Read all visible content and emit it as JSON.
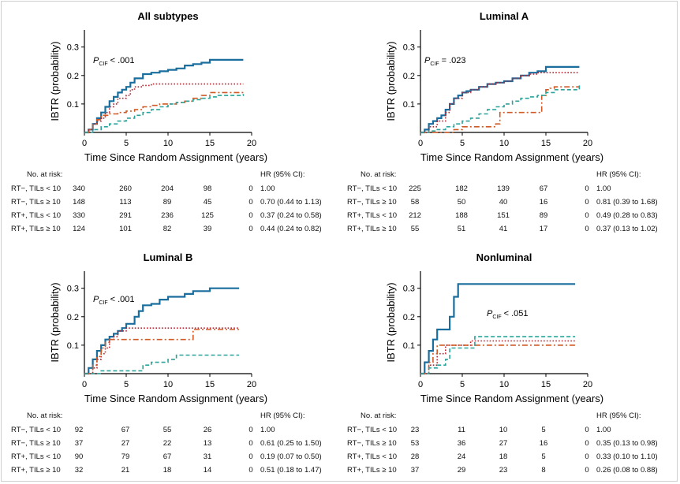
{
  "shared": {
    "ylabel": "IBTR (probability)",
    "xlabel": "Time Since Random Assignment (years)",
    "risk_header": "No. at risk:",
    "hr_header": "HR (95% CI):",
    "row_labels": [
      "RT−, TILs < 10",
      "RT−, TILs ≥ 10",
      "RT+, TILs < 10",
      "RT+, TILs ≥ 10"
    ],
    "x_ticks": [
      "0",
      "5",
      "10",
      "15",
      "20"
    ],
    "y_ticks": [
      "0.1",
      "0.2",
      "0.3"
    ],
    "series_colors": [
      "#1a6e9e",
      "#b8232f",
      "#cf5a26",
      "#2aa39a"
    ],
    "series_styles": [
      "solid",
      "dotted",
      "dashdot",
      "dashed"
    ]
  },
  "chart_data": [
    {
      "type": "line",
      "title": "All subtypes",
      "p_label": "P",
      "p_sub": "CIF",
      "p_value": "< .001",
      "xlim": [
        0,
        20
      ],
      "ylim": [
        0,
        0.36
      ],
      "series": [
        {
          "x": [
            0,
            0.5,
            1,
            1.5,
            2,
            2.5,
            3,
            3.5,
            4,
            4.5,
            5,
            5.5,
            6,
            7,
            8,
            9,
            10,
            11,
            12,
            13,
            14,
            15,
            16,
            19
          ],
          "y": [
            0,
            0.01,
            0.03,
            0.05,
            0.07,
            0.09,
            0.11,
            0.125,
            0.14,
            0.15,
            0.16,
            0.175,
            0.19,
            0.205,
            0.21,
            0.215,
            0.22,
            0.225,
            0.235,
            0.24,
            0.245,
            0.255,
            0.255,
            0.255
          ]
        },
        {
          "x": [
            0,
            0.5,
            1,
            1.5,
            2,
            2.5,
            3,
            3.5,
            4,
            5,
            5.5,
            6,
            7,
            8,
            19
          ],
          "y": [
            0,
            0.01,
            0.03,
            0.04,
            0.05,
            0.07,
            0.09,
            0.1,
            0.12,
            0.13,
            0.15,
            0.16,
            0.165,
            0.17,
            0.17
          ]
        },
        {
          "x": [
            0,
            0.5,
            1,
            1.5,
            2,
            3,
            4,
            5,
            6,
            7,
            8,
            9,
            10,
            11,
            12,
            13,
            14,
            15,
            16,
            19
          ],
          "y": [
            0,
            0.01,
            0.03,
            0.045,
            0.06,
            0.065,
            0.07,
            0.075,
            0.08,
            0.09,
            0.095,
            0.1,
            0.1,
            0.105,
            0.11,
            0.12,
            0.13,
            0.14,
            0.14,
            0.14
          ]
        },
        {
          "x": [
            0,
            1,
            2,
            3,
            4,
            5,
            6,
            7,
            8,
            9,
            10,
            11,
            12,
            13,
            14,
            15,
            16,
            19
          ],
          "y": [
            0,
            0.01,
            0.02,
            0.03,
            0.04,
            0.05,
            0.06,
            0.07,
            0.08,
            0.09,
            0.1,
            0.105,
            0.11,
            0.115,
            0.12,
            0.125,
            0.13,
            0.135
          ]
        }
      ],
      "risk_table": [
        [
          "340",
          "260",
          "204",
          "98",
          "0"
        ],
        [
          "148",
          "113",
          "89",
          "45",
          "0"
        ],
        [
          "330",
          "291",
          "236",
          "125",
          "0"
        ],
        [
          "124",
          "101",
          "82",
          "39",
          "0"
        ]
      ],
      "hr": [
        "1.00",
        "0.70 (0.44 to 1.13)",
        "0.37 (0.24 to 0.58)",
        "0.44 (0.24 to 0.82)"
      ]
    },
    {
      "type": "line",
      "title": "Luminal A",
      "p_label": "P",
      "p_sub": "CIF",
      "p_value": "= .023",
      "xlim": [
        0,
        20
      ],
      "ylim": [
        0,
        0.36
      ],
      "series": [
        {
          "x": [
            0,
            0.5,
            1,
            1.5,
            2,
            2.5,
            3,
            3.5,
            4,
            4.5,
            5,
            5.5,
            6,
            7,
            8,
            9,
            10,
            11,
            12,
            13,
            14,
            15,
            19
          ],
          "y": [
            0,
            0.01,
            0.03,
            0.04,
            0.05,
            0.06,
            0.08,
            0.1,
            0.12,
            0.13,
            0.14,
            0.145,
            0.15,
            0.16,
            0.17,
            0.175,
            0.18,
            0.19,
            0.2,
            0.21,
            0.215,
            0.23,
            0.23
          ]
        },
        {
          "x": [
            0,
            1,
            2,
            3,
            3.5,
            4,
            5,
            6,
            7,
            8,
            9,
            10,
            11,
            12,
            13,
            14,
            15,
            19
          ],
          "y": [
            0,
            0.02,
            0.04,
            0.07,
            0.1,
            0.12,
            0.14,
            0.15,
            0.16,
            0.17,
            0.175,
            0.18,
            0.19,
            0.2,
            0.205,
            0.21,
            0.21,
            0.21
          ]
        },
        {
          "x": [
            0,
            3,
            4,
            5,
            9,
            9.5,
            13,
            14,
            14.5,
            15,
            15.5,
            16,
            19
          ],
          "y": [
            0,
            0,
            0.01,
            0.02,
            0.03,
            0.07,
            0.07,
            0.07,
            0.13,
            0.15,
            0.155,
            0.16,
            0.16
          ]
        },
        {
          "x": [
            0,
            1,
            2,
            3,
            4,
            5,
            6,
            7,
            8,
            9,
            10,
            11,
            12,
            13,
            14,
            15,
            16,
            19
          ],
          "y": [
            0,
            0.005,
            0.01,
            0.02,
            0.03,
            0.04,
            0.05,
            0.065,
            0.08,
            0.09,
            0.1,
            0.11,
            0.12,
            0.125,
            0.13,
            0.14,
            0.15,
            0.165
          ]
        }
      ],
      "risk_table": [
        [
          "225",
          "182",
          "139",
          "67",
          "0"
        ],
        [
          "58",
          "50",
          "40",
          "16",
          "0"
        ],
        [
          "212",
          "188",
          "151",
          "89",
          "0"
        ],
        [
          "55",
          "51",
          "41",
          "17",
          "0"
        ]
      ],
      "hr": [
        "1.00",
        "0.81 (0.39 to 1.68)",
        "0.49 (0.28 to 0.83)",
        "0.37 (0.13 to 1.02)"
      ]
    },
    {
      "type": "line",
      "title": "Luminal B",
      "p_label": "P",
      "p_sub": "CIF",
      "p_value": "< .001",
      "xlim": [
        0,
        20
      ],
      "ylim": [
        0,
        0.36
      ],
      "series": [
        {
          "x": [
            0,
            0.5,
            1,
            1.5,
            2,
            2.5,
            3,
            3.5,
            4,
            4.5,
            5,
            6,
            6.5,
            7,
            8,
            9,
            10,
            12,
            13,
            15,
            18.5
          ],
          "y": [
            0,
            0.02,
            0.05,
            0.08,
            0.1,
            0.12,
            0.13,
            0.14,
            0.15,
            0.16,
            0.175,
            0.2,
            0.22,
            0.24,
            0.245,
            0.26,
            0.27,
            0.28,
            0.29,
            0.3,
            0.3
          ]
        },
        {
          "x": [
            0,
            1,
            1.5,
            2,
            2.5,
            3,
            3.5,
            4,
            5,
            10,
            12,
            18.5
          ],
          "y": [
            0,
            0.02,
            0.05,
            0.07,
            0.09,
            0.12,
            0.13,
            0.15,
            0.16,
            0.16,
            0.16,
            0.16
          ]
        },
        {
          "x": [
            0,
            1,
            1.5,
            2,
            2.5,
            3,
            4,
            5,
            10,
            12.5,
            13,
            18.5
          ],
          "y": [
            0,
            0.03,
            0.06,
            0.09,
            0.11,
            0.12,
            0.12,
            0.12,
            0.12,
            0.12,
            0.155,
            0.155
          ]
        },
        {
          "x": [
            0,
            1,
            2,
            3,
            6,
            7,
            8,
            10,
            11,
            18.5
          ],
          "y": [
            0,
            0,
            0.01,
            0.01,
            0.01,
            0.03,
            0.04,
            0.05,
            0.065,
            0.065
          ]
        }
      ],
      "risk_table": [
        [
          "92",
          "67",
          "55",
          "26",
          "0"
        ],
        [
          "37",
          "27",
          "22",
          "13",
          "0"
        ],
        [
          "90",
          "79",
          "67",
          "31",
          "0"
        ],
        [
          "32",
          "21",
          "18",
          "14",
          "0"
        ]
      ],
      "hr": [
        "1.00",
        "0.61 (0.25 to 1.50)",
        "0.19 (0.07 to 0.50)",
        "0.51 (0.18 to 1.47)"
      ]
    },
    {
      "type": "line",
      "title": "Nonluminal",
      "p_label": "P",
      "p_sub": "CIF",
      "p_value": "< .051",
      "xlim": [
        0,
        20
      ],
      "ylim": [
        0,
        0.36
      ],
      "series": [
        {
          "x": [
            0,
            0.5,
            1,
            1.5,
            2,
            3,
            3.5,
            4,
            4.5,
            18.5
          ],
          "y": [
            0,
            0.04,
            0.08,
            0.12,
            0.155,
            0.155,
            0.2,
            0.27,
            0.315,
            0.315
          ]
        },
        {
          "x": [
            0,
            1,
            2,
            3,
            6,
            18.5
          ],
          "y": [
            0,
            0.03,
            0.07,
            0.1,
            0.115,
            0.115
          ]
        },
        {
          "x": [
            0,
            1,
            1.5,
            2,
            6,
            18.5
          ],
          "y": [
            0,
            0.04,
            0.07,
            0.1,
            0.1,
            0.1
          ]
        },
        {
          "x": [
            0,
            1,
            2,
            3,
            3.5,
            6,
            6.5,
            18.5
          ],
          "y": [
            0,
            0.02,
            0.03,
            0.05,
            0.09,
            0.09,
            0.13,
            0.13
          ]
        }
      ],
      "risk_table": [
        [
          "23",
          "11",
          "10",
          "5",
          "0"
        ],
        [
          "53",
          "36",
          "27",
          "16",
          "0"
        ],
        [
          "28",
          "24",
          "18",
          "5",
          "0"
        ],
        [
          "37",
          "29",
          "23",
          "8",
          "0"
        ]
      ],
      "hr": [
        "1.00",
        "0.35 (0.13 to 0.98)",
        "0.33 (0.10 to 1.10)",
        "0.26 (0.08 to 0.88)"
      ]
    }
  ]
}
